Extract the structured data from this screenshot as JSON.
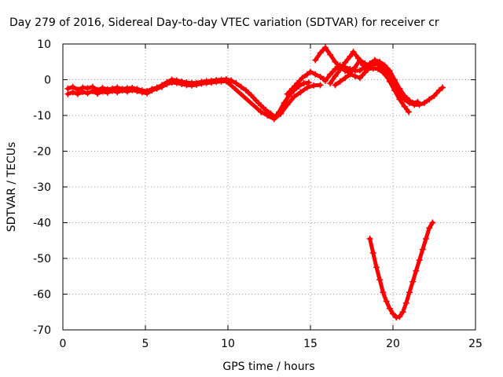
{
  "chart_data": {
    "type": "scatter",
    "title": "Day 279 of 2016, Sidereal Day-to-day VTEC variation (SDTVAR) for receiver cr",
    "xlabel": "GPS time / hours",
    "ylabel": "SDTVAR / TECUs",
    "xlim": [
      0,
      25
    ],
    "ylim": [
      -70,
      10
    ],
    "x_ticks": [
      "0",
      "5",
      "10",
      "15",
      "20",
      "25"
    ],
    "y_ticks": [
      "10",
      "0",
      "-10",
      "-20",
      "-30",
      "-40",
      "-50",
      "-60",
      "-70"
    ],
    "grid": true,
    "marker": "plus",
    "color": "#ff0000",
    "series": [
      {
        "points": [
          [
            0.3,
            -2.5
          ],
          [
            0.6,
            -2.0
          ],
          [
            0.9,
            -2.8
          ],
          [
            1.2,
            -2.2
          ],
          [
            1.5,
            -2.4
          ],
          [
            1.8,
            -2.0
          ],
          [
            2.1,
            -2.9
          ],
          [
            2.4,
            -2.3
          ],
          [
            2.7,
            -2.7
          ],
          [
            3.0,
            -2.5
          ],
          [
            3.3,
            -2.2
          ],
          [
            3.6,
            -2.6
          ],
          [
            3.9,
            -2.4
          ],
          [
            4.2,
            -2.3
          ],
          [
            4.5,
            -2.6
          ],
          [
            4.8,
            -3.0
          ],
          [
            5.1,
            -3.2
          ],
          [
            5.4,
            -2.6
          ],
          [
            5.7,
            -2.2
          ],
          [
            6.0,
            -1.5
          ],
          [
            6.3,
            -0.7
          ],
          [
            6.6,
            0.0
          ],
          [
            6.9,
            -0.2
          ],
          [
            7.2,
            -0.5
          ],
          [
            7.5,
            -0.8
          ],
          [
            7.8,
            -0.9
          ],
          [
            8.1,
            -0.9
          ],
          [
            8.4,
            -0.6
          ],
          [
            8.7,
            -0.4
          ],
          [
            9.0,
            -0.3
          ],
          [
            9.3,
            -0.1
          ],
          [
            9.6,
            0.0
          ],
          [
            9.9,
            0.1
          ],
          [
            10.2,
            -0.2
          ],
          [
            10.5,
            -1.0
          ],
          [
            10.8,
            -2.0
          ],
          [
            11.1,
            -3.0
          ],
          [
            11.4,
            -4.3
          ],
          [
            11.7,
            -5.8
          ],
          [
            12.0,
            -7.2
          ],
          [
            12.3,
            -8.5
          ],
          [
            12.6,
            -9.5
          ],
          [
            12.85,
            -10.5
          ],
          [
            13.1,
            -9.0
          ],
          [
            13.4,
            -6.5
          ],
          [
            13.7,
            -4.5
          ],
          [
            14.0,
            -3.0
          ],
          [
            14.3,
            -1.8
          ],
          [
            14.6,
            -1.0
          ],
          [
            14.9,
            -0.8
          ]
        ]
      },
      {
        "points": [
          [
            0.3,
            -4.0
          ],
          [
            0.6,
            -3.5
          ],
          [
            0.9,
            -4.0
          ],
          [
            1.2,
            -3.4
          ],
          [
            1.5,
            -3.8
          ],
          [
            1.8,
            -3.2
          ],
          [
            2.1,
            -3.9
          ],
          [
            2.4,
            -3.3
          ],
          [
            2.7,
            -3.6
          ],
          [
            3.0,
            -3.1
          ],
          [
            3.3,
            -3.5
          ],
          [
            3.6,
            -3.0
          ],
          [
            3.9,
            -3.3
          ],
          [
            4.2,
            -2.9
          ],
          [
            4.5,
            -3.2
          ],
          [
            4.8,
            -3.5
          ],
          [
            5.1,
            -3.8
          ],
          [
            5.4,
            -3.0
          ],
          [
            5.7,
            -2.5
          ],
          [
            6.0,
            -2.0
          ],
          [
            6.3,
            -1.2
          ],
          [
            6.6,
            -0.8
          ],
          [
            6.9,
            -0.9
          ],
          [
            7.2,
            -1.2
          ],
          [
            7.5,
            -1.5
          ],
          [
            7.8,
            -1.6
          ],
          [
            8.1,
            -1.4
          ],
          [
            8.4,
            -1.1
          ],
          [
            8.7,
            -0.9
          ],
          [
            9.0,
            -0.8
          ],
          [
            9.3,
            -0.6
          ],
          [
            9.6,
            -0.5
          ],
          [
            9.9,
            -0.4
          ],
          [
            12.0,
            -9.0
          ],
          [
            12.4,
            -10.0
          ],
          [
            12.8,
            -11.0
          ],
          [
            13.2,
            -9.5
          ],
          [
            13.6,
            -7.0
          ],
          [
            14.0,
            -4.8
          ],
          [
            14.4,
            -3.5
          ],
          [
            14.8,
            -2.2
          ],
          [
            15.2,
            -1.6
          ],
          [
            15.6,
            -1.5
          ]
        ]
      },
      {
        "points": [
          [
            13.6,
            -4.0
          ],
          [
            13.9,
            -2.5
          ],
          [
            14.2,
            -1.0
          ],
          [
            14.5,
            0.5
          ],
          [
            14.8,
            1.5
          ],
          [
            15.0,
            2.2
          ],
          [
            15.3,
            1.5
          ],
          [
            15.6,
            0.8
          ],
          [
            15.8,
            0.2
          ],
          [
            15.9,
            -0.3
          ],
          [
            16.2,
            1.5
          ],
          [
            16.5,
            3.0
          ],
          [
            16.8,
            4.0
          ],
          [
            17.1,
            3.5
          ],
          [
            17.4,
            3.0
          ],
          [
            17.7,
            2.5
          ],
          [
            18.0,
            2.6
          ],
          [
            18.3,
            3.5
          ],
          [
            18.6,
            4.5
          ],
          [
            18.9,
            5.2
          ],
          [
            19.2,
            4.8
          ],
          [
            19.5,
            3.5
          ],
          [
            19.8,
            1.5
          ],
          [
            20.1,
            -1.0
          ],
          [
            20.4,
            -3.5
          ],
          [
            20.7,
            -5.5
          ],
          [
            21.0,
            -6.5
          ],
          [
            21.3,
            -7.0
          ],
          [
            21.6,
            -7.0
          ],
          [
            21.9,
            -6.5
          ],
          [
            22.2,
            -5.5
          ],
          [
            22.5,
            -4.5
          ],
          [
            22.8,
            -3.0
          ],
          [
            23.0,
            -2.2
          ]
        ]
      },
      {
        "points": [
          [
            15.3,
            5.5
          ],
          [
            15.6,
            7.5
          ],
          [
            15.9,
            9.0
          ],
          [
            16.2,
            7.0
          ],
          [
            16.5,
            5.0
          ],
          [
            16.8,
            3.5
          ],
          [
            17.1,
            2.5
          ],
          [
            17.4,
            2.0
          ],
          [
            17.7,
            3.5
          ],
          [
            18.0,
            5.5
          ],
          [
            18.3,
            4.5
          ],
          [
            18.6,
            4.0
          ],
          [
            18.9,
            4.5
          ],
          [
            19.2,
            4.0
          ],
          [
            19.5,
            2.0
          ],
          [
            19.8,
            -0.5
          ],
          [
            20.1,
            -3.0
          ],
          [
            20.4,
            -5.5
          ],
          [
            20.7,
            -7.5
          ],
          [
            20.95,
            -9.0
          ]
        ]
      },
      {
        "points": [
          [
            16.2,
            -1.0
          ],
          [
            16.5,
            1.0
          ],
          [
            16.8,
            2.8
          ],
          [
            17.1,
            4.8
          ],
          [
            17.4,
            6.5
          ],
          [
            17.6,
            7.8
          ],
          [
            17.9,
            6.0
          ],
          [
            18.2,
            4.0
          ],
          [
            18.5,
            3.0
          ],
          [
            18.8,
            3.2
          ],
          [
            19.1,
            3.0
          ],
          [
            19.4,
            2.0
          ],
          [
            19.7,
            0.5
          ],
          [
            20.0,
            -1.5
          ],
          [
            20.3,
            -3.5
          ],
          [
            20.6,
            -5.0
          ],
          [
            20.9,
            -6.0
          ],
          [
            21.2,
            -6.5
          ],
          [
            21.5,
            -6.2
          ]
        ]
      },
      {
        "points": [
          [
            16.5,
            -1.5
          ],
          [
            16.8,
            -0.5
          ],
          [
            17.1,
            0.5
          ],
          [
            17.4,
            1.5
          ],
          [
            17.7,
            1.0
          ],
          [
            18.0,
            0.5
          ],
          [
            18.3,
            2.0
          ],
          [
            18.6,
            4.5
          ],
          [
            18.9,
            5.5
          ],
          [
            19.2,
            5.0
          ],
          [
            19.5,
            4.0
          ],
          [
            19.8,
            2.5
          ],
          [
            20.1,
            0.0
          ],
          [
            20.4,
            -2.5
          ],
          [
            20.7,
            -4.5
          ],
          [
            21.0,
            -5.8
          ]
        ]
      },
      {
        "points": [
          [
            18.6,
            -44.5
          ],
          [
            18.8,
            -48.5
          ],
          [
            19.0,
            -52.5
          ],
          [
            19.2,
            -56.0
          ],
          [
            19.4,
            -59.5
          ],
          [
            19.6,
            -62.0
          ],
          [
            19.8,
            -64.0
          ],
          [
            20.0,
            -65.5
          ],
          [
            20.2,
            -66.5
          ],
          [
            20.4,
            -66.3
          ],
          [
            20.6,
            -65.0
          ],
          [
            20.8,
            -62.5
          ],
          [
            21.0,
            -59.5
          ],
          [
            21.2,
            -56.5
          ],
          [
            21.4,
            -53.5
          ],
          [
            21.6,
            -50.5
          ],
          [
            21.8,
            -47.5
          ],
          [
            22.0,
            -44.5
          ],
          [
            22.2,
            -41.5
          ],
          [
            22.4,
            -40.0
          ]
        ]
      }
    ]
  }
}
